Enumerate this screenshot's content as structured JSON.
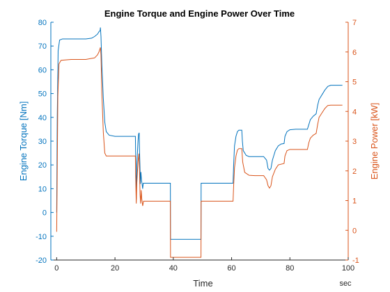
{
  "chart_data": {
    "type": "line",
    "title": "Engine Torque and Engine Power Over Time",
    "xlabel": "Time",
    "x_unit": "sec",
    "xlim": [
      -2,
      100
    ],
    "x_ticks": [
      0,
      20,
      40,
      60,
      80,
      100
    ],
    "grid": false,
    "left_axis": {
      "label": "Engine Torque [Nm]",
      "lim": [
        -20,
        80
      ],
      "ticks": [
        -20,
        -10,
        0,
        10,
        20,
        30,
        40,
        50,
        60,
        70,
        80
      ],
      "color": "#0072BD"
    },
    "right_axis": {
      "label": "Engine Power [kW]",
      "lim": [
        -1,
        7
      ],
      "ticks": [
        -1,
        0,
        1,
        2,
        3,
        4,
        5,
        6,
        7
      ],
      "color": "#D95319"
    },
    "series": [
      {
        "axis": "left",
        "color": "#0072BD",
        "points": [
          [
            0,
            0
          ],
          [
            0.2,
            40
          ],
          [
            0.5,
            68
          ],
          [
            1,
            72.5
          ],
          [
            2,
            73
          ],
          [
            5,
            73
          ],
          [
            10,
            73
          ],
          [
            12,
            73.3
          ],
          [
            13,
            74
          ],
          [
            14,
            75
          ],
          [
            14.5,
            76
          ],
          [
            14.9,
            76.5
          ],
          [
            15,
            77.8
          ],
          [
            15.2,
            74
          ],
          [
            15.5,
            62
          ],
          [
            16,
            48
          ],
          [
            16.5,
            38
          ],
          [
            17,
            34
          ],
          [
            18,
            32.5
          ],
          [
            20,
            32
          ],
          [
            27,
            32
          ],
          [
            27.1,
            24
          ],
          [
            27.3,
            5.5
          ],
          [
            27.5,
            20
          ],
          [
            27.9,
            30
          ],
          [
            28.1,
            33
          ],
          [
            28.3,
            33.5
          ],
          [
            28.4,
            27
          ],
          [
            28.6,
            18
          ],
          [
            28.7,
            12
          ],
          [
            28.9,
            17
          ],
          [
            29.1,
            13.5
          ],
          [
            29.3,
            12
          ],
          [
            29.5,
            10
          ],
          [
            29.7,
            12.3
          ],
          [
            30.5,
            12.3
          ],
          [
            39,
            12.3
          ],
          [
            39.05,
            -11.3
          ],
          [
            49.5,
            -11.3
          ],
          [
            49.55,
            12.3
          ],
          [
            60.5,
            12.3
          ],
          [
            60.7,
            20
          ],
          [
            61,
            28
          ],
          [
            61.5,
            32
          ],
          [
            62,
            34
          ],
          [
            62.5,
            34.6
          ],
          [
            63.5,
            34.6
          ],
          [
            63.7,
            30
          ],
          [
            64,
            26
          ],
          [
            65,
            24
          ],
          [
            66,
            23.5
          ],
          [
            68,
            23.5
          ],
          [
            71,
            23.5
          ],
          [
            72,
            22
          ],
          [
            72.5,
            18.5
          ],
          [
            73,
            17.8
          ],
          [
            73.5,
            18.5
          ],
          [
            74,
            22
          ],
          [
            74.5,
            24
          ],
          [
            75,
            26
          ],
          [
            76,
            28
          ],
          [
            77,
            28.8
          ],
          [
            78,
            29
          ],
          [
            78.3,
            32
          ],
          [
            79,
            34
          ],
          [
            80,
            34.8
          ],
          [
            82,
            35
          ],
          [
            85,
            35
          ],
          [
            86,
            35
          ],
          [
            86.5,
            37
          ],
          [
            87,
            39
          ],
          [
            88,
            40.5
          ],
          [
            89,
            41.5
          ],
          [
            89.5,
            45
          ],
          [
            90,
            47.5
          ],
          [
            91,
            49.5
          ],
          [
            92,
            51.5
          ],
          [
            93,
            53
          ],
          [
            94,
            53.5
          ],
          [
            98,
            53.5
          ]
        ]
      },
      {
        "axis": "right",
        "color": "#D95319",
        "points": [
          [
            0,
            -0.05
          ],
          [
            0.15,
            1.5
          ],
          [
            0.4,
            4.5
          ],
          [
            0.8,
            5.6
          ],
          [
            1.5,
            5.72
          ],
          [
            5,
            5.75
          ],
          [
            10,
            5.75
          ],
          [
            13,
            5.8
          ],
          [
            14,
            5.9
          ],
          [
            14.5,
            6.0
          ],
          [
            15,
            6.15
          ],
          [
            15.2,
            5.9
          ],
          [
            15.5,
            4.6
          ],
          [
            16,
            3.3
          ],
          [
            16.5,
            2.6
          ],
          [
            17,
            2.5
          ],
          [
            20,
            2.5
          ],
          [
            27,
            2.5
          ],
          [
            27.1,
            1.8
          ],
          [
            27.3,
            0.9
          ],
          [
            27.5,
            1.6
          ],
          [
            27.9,
            2.3
          ],
          [
            28.2,
            2.58
          ],
          [
            28.4,
            2.1
          ],
          [
            28.6,
            1.2
          ],
          [
            28.8,
            0.9
          ],
          [
            29.0,
            1.35
          ],
          [
            29.2,
            1.05
          ],
          [
            29.5,
            0.82
          ],
          [
            29.8,
            0.98
          ],
          [
            30.5,
            0.98
          ],
          [
            39,
            0.98
          ],
          [
            39.05,
            -0.91
          ],
          [
            49.5,
            -0.91
          ],
          [
            49.55,
            0.98
          ],
          [
            60.5,
            0.98
          ],
          [
            60.7,
            1.5
          ],
          [
            61,
            2.1
          ],
          [
            61.5,
            2.5
          ],
          [
            62,
            2.7
          ],
          [
            62.5,
            2.75
          ],
          [
            63.5,
            2.75
          ],
          [
            63.8,
            2.3
          ],
          [
            64.5,
            1.95
          ],
          [
            66,
            1.85
          ],
          [
            68,
            1.84
          ],
          [
            71,
            1.84
          ],
          [
            72,
            1.7
          ],
          [
            72.5,
            1.5
          ],
          [
            73,
            1.42
          ],
          [
            73.5,
            1.5
          ],
          [
            74,
            1.8
          ],
          [
            75,
            2.05
          ],
          [
            76,
            2.2
          ],
          [
            78,
            2.25
          ],
          [
            78.3,
            2.5
          ],
          [
            79,
            2.68
          ],
          [
            80,
            2.72
          ],
          [
            86,
            2.72
          ],
          [
            86.5,
            2.95
          ],
          [
            87,
            3.1
          ],
          [
            88,
            3.2
          ],
          [
            89,
            3.26
          ],
          [
            89.5,
            3.55
          ],
          [
            90,
            3.8
          ],
          [
            91,
            3.95
          ],
          [
            92,
            4.1
          ],
          [
            93,
            4.2
          ],
          [
            94,
            4.21
          ],
          [
            98,
            4.21
          ]
        ]
      }
    ]
  }
}
